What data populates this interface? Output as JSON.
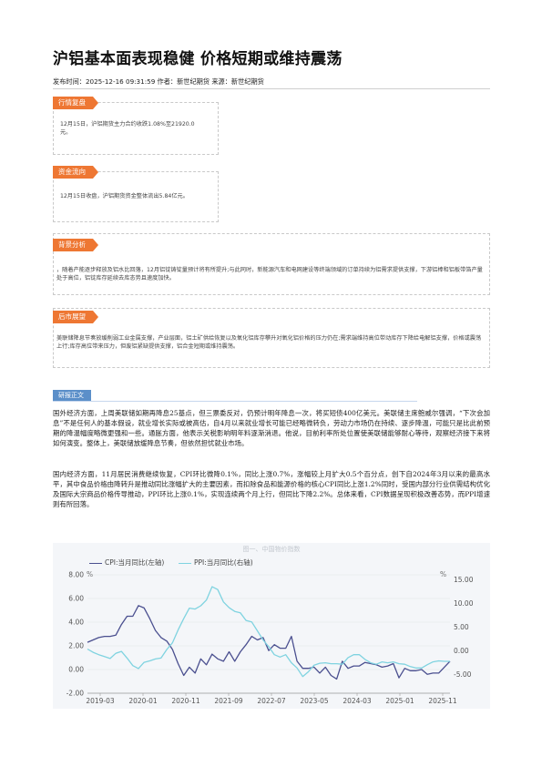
{
  "article": {
    "title": "沪铝基本面表现稳健 价格短期或维持震荡",
    "meta": "发布时间：2025-12-16 09:31:59 作者：新世纪期货 来源：新世纪期货"
  },
  "sections": [
    {
      "tag": "行情复盘",
      "text": "12月15日，沪铝期货主力合约收跌1.08%至21920.0元。"
    },
    {
      "tag": "资金流向",
      "text": "12月15日收盘，沪铝期货资金整体流出5.84亿元。"
    },
    {
      "tag": "背景分析",
      "text": "，随着产能逐步释放及铝水比回落，12月铝锭铸锭量预计将有所提升;与此同时，新能源汽车和电网建设等终端领域的订单持续为铝需求提供支撑，下游铝棒和铝板带箔产量处于高位，铝锭库存延续去库态势且速度加快。"
    },
    {
      "tag": "后市展望",
      "text": "美联储降息节奏放缓削弱工业金属支撑，产业层面，铝土矿供给恢复以及氧化铝库存攀升对氧化铝价格的压力仍在;需求端维持高位带动库存下降给电解铝支撑，价格或震荡上行;库存高位带来压力，但废铝紧缺提供支撑，铝合金短期或维持震荡。"
    }
  ],
  "research": {
    "tag": "研报正文",
    "para1": "国外经济方面，上周美联储如期再降息25基点，但三票委反对，仍预计明年降息一次，将买短债400亿美元。美联储主席鲍威尔强调，“下次会加息”不是任何人的基本假设，就业增长实际或被高估，自4月以来就业增长可能已经略微转负，劳动力市场仍在持续、逐步降温，可能只是比此前预期的降温幅度略微更强和一些。通胀方面，他表示关税影响明年料逐渐消退。他说，目前利率所处位置使美联储能够耐心等待，观察经济接下来将如何演变。整体上，美联储放缓降息节奏，但依然担忧就业市场。",
    "para2": "国内经济方面，11月居民消费继续恢复，CPI环比微降0.1%，同比上涨0.7%，涨幅较上月扩大0.5个百分点，创下自2024年3月以来的最高水平，其中食品价格由降转升是推动同比涨幅扩大的主要因素，而扣除食品和能源价格的核心CPI同比上涨1.2%同时，受国内部分行业供需结构优化及国际大宗商品价格传导推动，PPI环比上涨0.1%，实现连续两个月上行，但同比下降2.2%。总体来看，CPI数据呈现积极改善态势，而PPI增速则有所回落。"
  },
  "chart_data": {
    "type": "line",
    "title": "图一、中国物价指数",
    "x_ticks": [
      "2019-03",
      "2020-01",
      "2020-11",
      "2021-09",
      "2022-07",
      "2023-05",
      "2024-03",
      "2025-01",
      "2025-11"
    ],
    "left_axis": {
      "unit": "%",
      "ticks": [
        "8.00",
        "6.00",
        "4.00",
        "2.00",
        "0.00",
        "-2.00"
      ],
      "ylim": [
        -2,
        9
      ]
    },
    "right_axis": {
      "unit": "%",
      "ticks": [
        "15.00",
        "10.00",
        "5.00",
        "0.00",
        "-5.00"
      ],
      "ylim": [
        -8.9,
        18.5
      ]
    },
    "colors": {
      "cpi": "#4a4f8f",
      "ppi": "#7fd3e0"
    },
    "series": [
      {
        "name": "CPI:当月同比(左轴)",
        "axis": "left",
        "values": [
          2.3,
          2.5,
          2.7,
          2.8,
          2.8,
          2.9,
          3.8,
          4.5,
          4.5,
          5.4,
          5.2,
          4.3,
          3.3,
          2.7,
          2.4,
          1.7,
          0.5,
          -0.5,
          0.2,
          -0.3,
          0.9,
          0.4,
          1.3,
          0.9,
          0.7,
          1.5,
          0.7,
          1.5,
          2.1,
          2.8,
          2.5,
          2.7,
          1.6,
          2.1,
          1.8,
          1.8,
          2.8,
          0.7,
          0.1,
          0.1,
          0.2,
          -0.3,
          0.2,
          -0.5,
          -0.8,
          0.7,
          0.1,
          0.3,
          0.3,
          0.6,
          0.5,
          0.4,
          0.2,
          0.3,
          0.5,
          -0.7,
          0.1,
          -0.1,
          -0.1,
          0.0,
          -0.4,
          -0.3,
          -0.3,
          0.2,
          0.7
        ]
      },
      {
        "name": "PPI:当月同比(右轴)",
        "axis": "right",
        "values": [
          0.4,
          -0.3,
          -0.8,
          -1.2,
          -1.6,
          -0.5,
          -0.1,
          -1.5,
          -3.1,
          -3.7,
          -2.4,
          -2.1,
          -1.7,
          -1.5,
          0.3,
          1.7,
          4.4,
          6.8,
          9.0,
          8.8,
          9.5,
          10.7,
          13.5,
          12.9,
          10.3,
          9.1,
          8.3,
          8.0,
          6.4,
          6.1,
          4.2,
          2.3,
          0.9,
          -0.8,
          -1.3,
          -0.8,
          -2.5,
          -3.6,
          -5.4,
          -4.4,
          -3.0,
          -2.6,
          -2.5,
          -2.7,
          -2.7,
          -2.8,
          -1.4,
          -0.8,
          -0.8,
          -1.8,
          -2.5,
          -2.8,
          -2.3,
          -2.5,
          -2.3,
          -2.7,
          -2.8,
          -3.3,
          -3.6,
          -3.6,
          -2.9,
          -2.3,
          -2.1,
          -2.2,
          -2.2
        ]
      }
    ]
  }
}
